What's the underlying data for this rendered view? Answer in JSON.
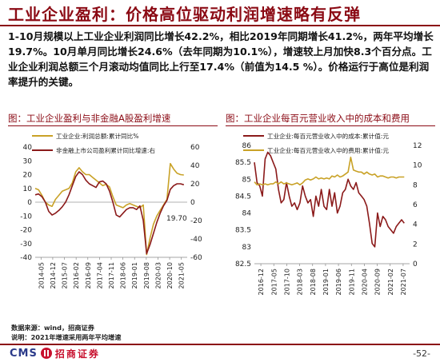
{
  "page": {
    "title": "工业企业盈利：价格高位驱动利润增速略有反弹",
    "summary": "1-10月规模以上工业企业利润同比增长42.2%，相比2019年同期增长41.2%，两年平均增长19.7%。10月单月同比增长24.6%（去年同期为10.1%），增速较上月加快8.3个百分点。工业企业利润总额三个月滚动均值同比上行至17.4%（前值为14.5 %）。价格运行于高位是利润率提升的关键。",
    "source": "数据来源：wind，招商证券",
    "note": "说明：2021年增速采用两年平均增速",
    "brand_abbr": "CMS",
    "brand_name": "招商证券",
    "page_number": "-52-"
  },
  "colors": {
    "brand_red": "#8b0a14",
    "series_gold": "#c9a227",
    "series_darkred": "#8b1a1a"
  },
  "chart_data": [
    {
      "type": "line",
      "title": "图：工业企业盈利与非金融A股盈利增速",
      "x_ticks": [
        "2014-05",
        "2014-12",
        "2015-07",
        "2016-02",
        "2016-09",
        "2017-04",
        "2017-11",
        "2018-06",
        "2019-01",
        "2019-08",
        "2020-03",
        "2020-10",
        "2021-05"
      ],
      "x_range": [
        0,
        90
      ],
      "left_axis": {
        "range": [
          -40,
          40
        ],
        "ticks": [
          -40,
          -30,
          -20,
          -10,
          0,
          10,
          20,
          30,
          40
        ]
      },
      "right_axis": {
        "range": [
          -60,
          60
        ],
        "ticks": [
          -60,
          -40,
          -20,
          0,
          20,
          40,
          60
        ]
      },
      "annotation": "19.70",
      "legend_placement": "top",
      "series": [
        {
          "name": "工业企业:利润总额:累计同比%",
          "axis": "left",
          "color": "#c9a227",
          "x": [
            0,
            2,
            4,
            6,
            8,
            10,
            12,
            14,
            16,
            18,
            20,
            22,
            24,
            26,
            28,
            30,
            32,
            34,
            36,
            38,
            40,
            42,
            44,
            46,
            48,
            50,
            52,
            54,
            56,
            58,
            60,
            62,
            64,
            66,
            68,
            70,
            72,
            74,
            76,
            78,
            80,
            82,
            84,
            86,
            88
          ],
          "y": [
            10,
            9,
            5,
            0,
            -2,
            -3,
            2,
            5,
            8,
            9,
            10,
            14,
            22,
            25,
            22,
            20,
            20,
            18,
            16,
            14,
            12,
            13,
            11,
            4,
            -2,
            -3,
            -4,
            -2,
            -1,
            -2,
            -3,
            -4,
            -2,
            -38,
            -26,
            -16,
            -10,
            -6,
            -2,
            2,
            28,
            24,
            21,
            20,
            19.7
          ]
        },
        {
          "name": "非金融上市公司盈利累计同比增速:右",
          "axis": "right",
          "color": "#8b1a1a",
          "x": [
            0,
            2,
            4,
            6,
            8,
            10,
            12,
            14,
            16,
            18,
            20,
            22,
            24,
            26,
            28,
            30,
            32,
            34,
            36,
            38,
            40,
            42,
            44,
            46,
            48,
            50,
            52,
            54,
            56,
            58,
            60,
            62,
            64,
            66,
            68,
            70,
            72,
            74,
            76,
            78,
            80,
            82,
            84,
            86,
            88
          ],
          "y": [
            8,
            9,
            6,
            0,
            -10,
            -14,
            -12,
            -9,
            -5,
            0,
            8,
            18,
            28,
            33,
            30,
            24,
            20,
            18,
            16,
            22,
            23,
            20,
            12,
            0,
            -14,
            -16,
            -12,
            -8,
            -6,
            -6,
            -8,
            -4,
            -20,
            -56,
            -46,
            -34,
            -22,
            -12,
            -4,
            2,
            14,
            18,
            20,
            20,
            19
          ]
        }
      ]
    },
    {
      "type": "line",
      "title": "图：工业企业每百元营业收入中的成本和费用",
      "x_ticks": [
        "2016-12",
        "2017-05",
        "2017-10",
        "2018-03",
        "2018-08",
        "2019-01",
        "2019-06",
        "2019-11",
        "2020-04",
        "2020-09",
        "2021-02",
        "2021-07"
      ],
      "x_range": [
        0,
        58
      ],
      "left_axis": {
        "range": [
          82.5,
          86
        ],
        "ticks": [
          82.5,
          83,
          83.5,
          84,
          84.5,
          85,
          85.5,
          86
        ]
      },
      "right_axis": {
        "range": [
          0,
          12
        ],
        "ticks": [
          0,
          2,
          4,
          6,
          8,
          10,
          12
        ]
      },
      "legend_placement": "top",
      "series": [
        {
          "name": "工业企业:每百元营业收入中的成本:累计值:元",
          "axis": "left",
          "color": "#8b1a1a",
          "x": [
            0,
            1,
            2,
            3,
            4,
            5,
            6,
            7,
            8,
            9,
            10,
            11,
            12,
            13,
            14,
            15,
            16,
            17,
            18,
            19,
            20,
            21,
            22,
            23,
            24,
            25,
            26,
            27,
            28,
            29,
            30,
            31,
            32,
            33,
            34,
            35,
            36,
            37,
            38,
            39,
            40,
            41,
            42,
            43,
            44,
            45,
            46,
            47,
            48,
            49,
            50,
            51,
            52,
            53,
            54,
            55,
            56
          ],
          "y": [
            85.5,
            84.9,
            84.8,
            84.5,
            85.6,
            85.8,
            85.7,
            85.5,
            85.3,
            84.7,
            84.3,
            84.4,
            84.9,
            84.5,
            84.2,
            84.3,
            84.1,
            84.3,
            84.8,
            84.5,
            84.3,
            84.4,
            83.9,
            84.5,
            84.2,
            84.7,
            84.2,
            84.1,
            84.7,
            84.2,
            84.6,
            84.0,
            84.2,
            84.6,
            84.7,
            85.0,
            84.8,
            84.7,
            84.9,
            84.6,
            84.5,
            84.4,
            84.2,
            83.7,
            83.1,
            83.0,
            84.0,
            83.6,
            83.9,
            83.8,
            83.6,
            83.5,
            83.4,
            83.6,
            83.7,
            83.8,
            83.7
          ]
        },
        {
          "name": "工业企业:每百元营业收入中的费用:累计值:元",
          "axis": "right",
          "color": "#c9a227",
          "x": [
            0,
            1,
            2,
            3,
            4,
            5,
            6,
            7,
            8,
            9,
            10,
            11,
            12,
            13,
            14,
            15,
            16,
            17,
            18,
            19,
            20,
            21,
            22,
            23,
            24,
            25,
            26,
            27,
            28,
            29,
            30,
            31,
            32,
            33,
            34,
            35,
            36,
            37,
            38,
            39,
            40,
            41,
            42,
            43,
            44,
            45,
            46,
            47,
            48,
            49,
            50,
            51,
            52,
            53,
            54,
            55,
            56
          ],
          "y": [
            8.3,
            8.0,
            8.1,
            8.0,
            8.1,
            8.0,
            8.1,
            8.1,
            8.3,
            8.1,
            8.3,
            8.1,
            8.2,
            8.1,
            8.0,
            8.1,
            8.2,
            8.0,
            8.2,
            8.5,
            8.6,
            8.5,
            8.6,
            8.8,
            8.6,
            8.7,
            8.6,
            8.7,
            8.6,
            8.9,
            8.8,
            9.0,
            8.8,
            8.9,
            9.1,
            9.3,
            10.8,
            9.5,
            9.4,
            9.3,
            9.3,
            9.1,
            9.3,
            9.1,
            9.0,
            9.1,
            8.8,
            8.9,
            8.9,
            8.8,
            8.7,
            8.8,
            8.8,
            8.7,
            8.8,
            8.8,
            8.8
          ]
        }
      ]
    }
  ]
}
